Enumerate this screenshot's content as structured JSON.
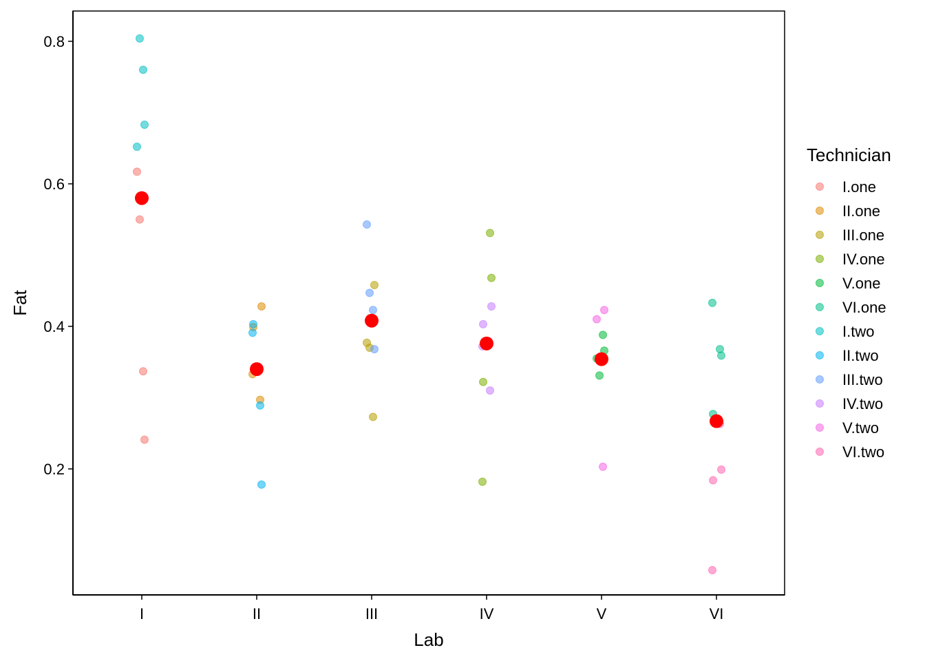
{
  "chart_data": {
    "type": "scatter",
    "title": "",
    "xlabel": "Lab",
    "ylabel": "Fat",
    "categories": [
      "I",
      "II",
      "III",
      "IV",
      "V",
      "VI"
    ],
    "y_ticks": [
      "0.2",
      "0.4",
      "0.6",
      "0.8"
    ],
    "ylim": [
      0.04,
      0.84
    ],
    "grid": false,
    "legend": {
      "title": "Technician",
      "position": "right"
    },
    "series": [
      {
        "name": "I.one",
        "color": "#F8766D",
        "points": [
          {
            "x": "I",
            "y": 0.617
          },
          {
            "x": "I",
            "y": 0.55
          },
          {
            "x": "I",
            "y": 0.337
          },
          {
            "x": "I",
            "y": 0.241
          }
        ]
      },
      {
        "name": "II.one",
        "color": "#DE8C00",
        "points": [
          {
            "x": "II",
            "y": 0.428
          },
          {
            "x": "II",
            "y": 0.399
          },
          {
            "x": "II",
            "y": 0.333
          },
          {
            "x": "II",
            "y": 0.297
          }
        ]
      },
      {
        "name": "III.one",
        "color": "#B79F00",
        "points": [
          {
            "x": "III",
            "y": 0.458
          },
          {
            "x": "III",
            "y": 0.377
          },
          {
            "x": "III",
            "y": 0.37
          },
          {
            "x": "III",
            "y": 0.273
          }
        ]
      },
      {
        "name": "IV.one",
        "color": "#7CAE00",
        "points": [
          {
            "x": "IV",
            "y": 0.531
          },
          {
            "x": "IV",
            "y": 0.468
          },
          {
            "x": "IV",
            "y": 0.322
          },
          {
            "x": "IV",
            "y": 0.182
          }
        ]
      },
      {
        "name": "V.one",
        "color": "#00BA38",
        "points": [
          {
            "x": "V",
            "y": 0.388
          },
          {
            "x": "V",
            "y": 0.366
          },
          {
            "x": "V",
            "y": 0.355
          },
          {
            "x": "V",
            "y": 0.331
          }
        ]
      },
      {
        "name": "VI.one",
        "color": "#00C08B",
        "points": [
          {
            "x": "VI",
            "y": 0.433
          },
          {
            "x": "VI",
            "y": 0.368
          },
          {
            "x": "VI",
            "y": 0.359
          },
          {
            "x": "VI",
            "y": 0.277
          }
        ]
      },
      {
        "name": "I.two",
        "color": "#00BFC4",
        "points": [
          {
            "x": "I",
            "y": 0.804
          },
          {
            "x": "I",
            "y": 0.76
          },
          {
            "x": "I",
            "y": 0.683
          },
          {
            "x": "I",
            "y": 0.652
          }
        ]
      },
      {
        "name": "II.two",
        "color": "#00B4F0",
        "points": [
          {
            "x": "II",
            "y": 0.403
          },
          {
            "x": "II",
            "y": 0.391
          },
          {
            "x": "II",
            "y": 0.289
          },
          {
            "x": "II",
            "y": 0.178
          }
        ]
      },
      {
        "name": "III.two",
        "color": "#619CFF",
        "points": [
          {
            "x": "III",
            "y": 0.543
          },
          {
            "x": "III",
            "y": 0.447
          },
          {
            "x": "III",
            "y": 0.423
          },
          {
            "x": "III",
            "y": 0.368
          }
        ]
      },
      {
        "name": "IV.two",
        "color": "#C77CFF",
        "points": [
          {
            "x": "IV",
            "y": 0.428
          },
          {
            "x": "IV",
            "y": 0.403
          },
          {
            "x": "IV",
            "y": 0.372
          },
          {
            "x": "IV",
            "y": 0.31
          }
        ]
      },
      {
        "name": "V.two",
        "color": "#F564E3",
        "points": [
          {
            "x": "V",
            "y": 0.423
          },
          {
            "x": "V",
            "y": 0.41
          },
          {
            "x": "V",
            "y": 0.357
          },
          {
            "x": "V",
            "y": 0.203
          }
        ]
      },
      {
        "name": "VI.two",
        "color": "#FF64B0",
        "points": [
          {
            "x": "VI",
            "y": 0.263
          },
          {
            "x": "VI",
            "y": 0.199
          },
          {
            "x": "VI",
            "y": 0.184
          },
          {
            "x": "VI",
            "y": 0.058
          }
        ]
      }
    ],
    "means": {
      "color": "#FF0000",
      "values": [
        {
          "x": "I",
          "y": 0.58
        },
        {
          "x": "II",
          "y": 0.34
        },
        {
          "x": "III",
          "y": 0.408
        },
        {
          "x": "IV",
          "y": 0.376
        },
        {
          "x": "V",
          "y": 0.354
        },
        {
          "x": "VI",
          "y": 0.267
        }
      ]
    }
  }
}
